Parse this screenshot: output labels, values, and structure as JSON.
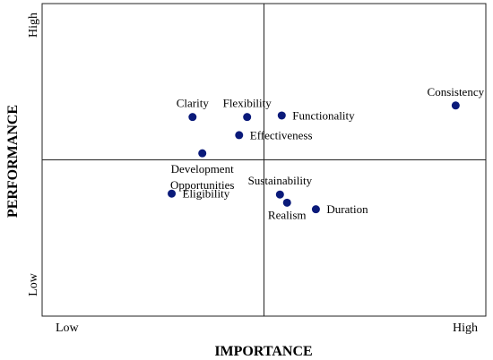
{
  "chart_data": {
    "type": "scatter",
    "xlabel": "IMPORTANCE",
    "ylabel": "PERFORMANCE",
    "x_tick_labels": {
      "low": "Low",
      "high": "High"
    },
    "y_tick_labels": {
      "low": "Low",
      "high": "High"
    },
    "xlim": [
      0,
      1
    ],
    "ylim": [
      0,
      1
    ],
    "quadrant_divider": {
      "x": 0.5,
      "y": 0.5
    },
    "grid": false,
    "point_color": "#0a1a7a",
    "points": [
      {
        "label": "Clarity",
        "x": 0.339,
        "y": 0.637,
        "label_pos": "above"
      },
      {
        "label": "Flexibility",
        "x": 0.462,
        "y": 0.637,
        "label_pos": "above"
      },
      {
        "label": "Functionality",
        "x": 0.54,
        "y": 0.642,
        "label_pos": "right"
      },
      {
        "label": "Consistency",
        "x": 0.932,
        "y": 0.674,
        "label_pos": "above"
      },
      {
        "label": "Effectiveness",
        "x": 0.444,
        "y": 0.579,
        "label_pos": "right"
      },
      {
        "label": "Development Opportunities",
        "x": 0.361,
        "y": 0.521,
        "label_pos": "below"
      },
      {
        "label": "Eligibility",
        "x": 0.292,
        "y": 0.392,
        "label_pos": "right"
      },
      {
        "label": "Sustainability",
        "x": 0.536,
        "y": 0.389,
        "label_pos": "above"
      },
      {
        "label": "Realism",
        "x": 0.552,
        "y": 0.363,
        "label_pos": "below"
      },
      {
        "label": "Duration",
        "x": 0.617,
        "y": 0.342,
        "label_pos": "right"
      }
    ]
  }
}
